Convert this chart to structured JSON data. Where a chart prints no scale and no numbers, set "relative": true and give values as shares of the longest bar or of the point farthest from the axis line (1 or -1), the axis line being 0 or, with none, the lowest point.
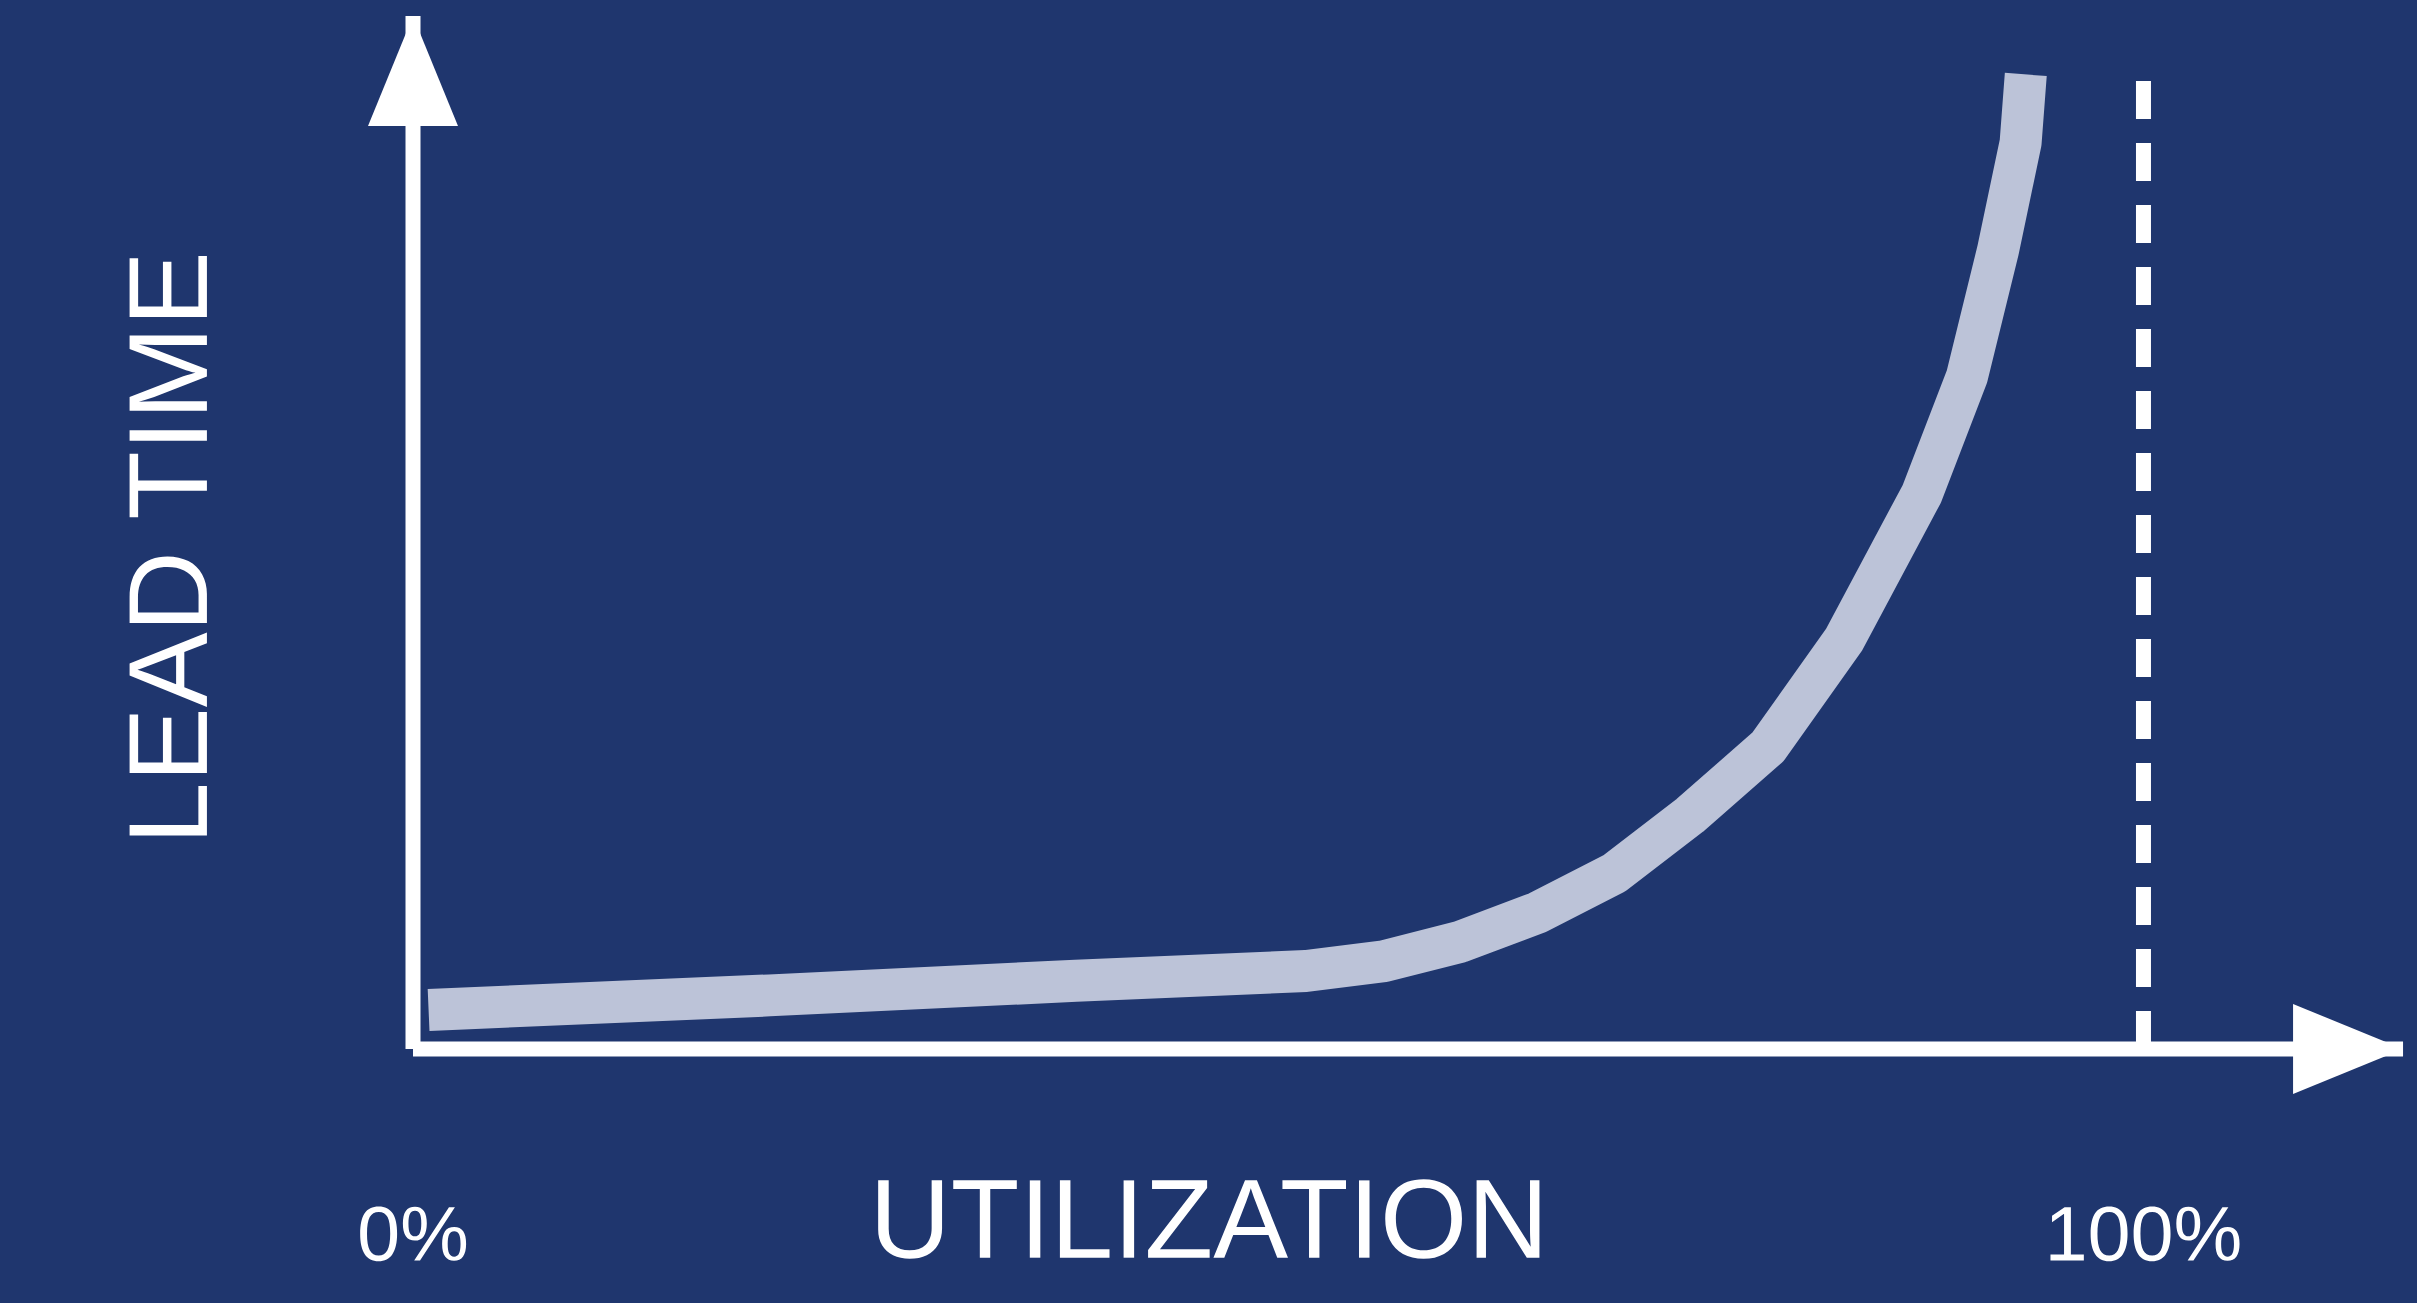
{
  "chart_data": {
    "type": "line",
    "xlabel": "UTILIZATION",
    "ylabel": "LEAD TIME",
    "relative": true,
    "x": [
      0.9,
      20.6,
      38.3,
      51.6,
      56.1,
      60.5,
      65,
      69.4,
      73.8,
      78.3,
      82.7,
      87.2,
      89.8,
      91.6,
      92.9,
      93.2
    ],
    "values": [
      0.04,
      0.055,
      0.07,
      0.08,
      0.09,
      0.11,
      0.14,
      0.18,
      0.24,
      0.31,
      0.42,
      0.57,
      0.69,
      0.82,
      0.93,
      1
    ],
    "color": "#bcc3d8",
    "xlim": [
      0,
      115
    ],
    "xticks": [
      {
        "value": 0,
        "label": "0%"
      },
      {
        "value": 100,
        "label": "100%"
      }
    ],
    "ref_lines": [
      {
        "axis": "x",
        "value": 100,
        "color": "#ffffff",
        "line_style": "dashed"
      }
    ]
  }
}
